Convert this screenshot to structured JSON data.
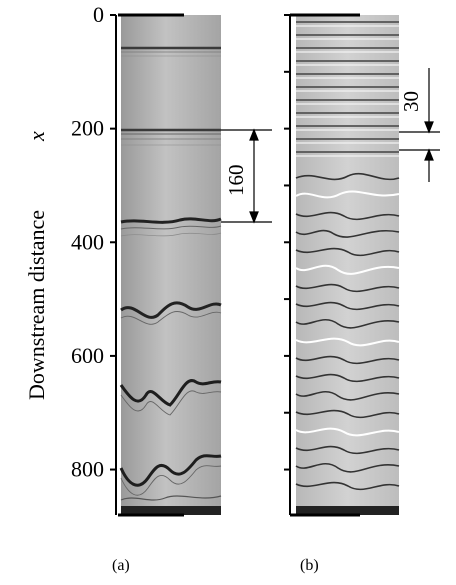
{
  "figure": {
    "axis_title": "Downstream distance",
    "axis_symbol": "x",
    "panels": [
      {
        "label": "(a)",
        "annotation": "160",
        "annotation_from": 210,
        "annotation_to": 370
      },
      {
        "label": "(b)",
        "annotation": "30",
        "annotation_from": 215,
        "annotation_to": 245
      }
    ]
  },
  "chart_data": {
    "type": "image-strips",
    "axis": {
      "label": "Downstream distance",
      "symbol": "x",
      "min": 0,
      "max": 880,
      "ticks": [
        0,
        200,
        400,
        600,
        800
      ]
    }
  }
}
